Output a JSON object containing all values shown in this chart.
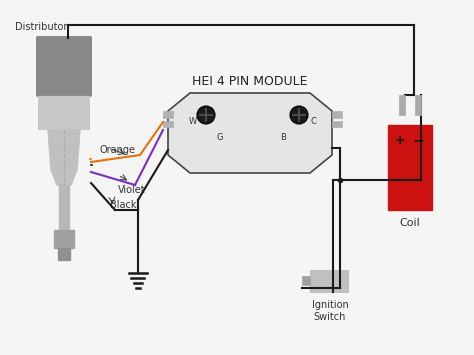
{
  "title": "HEI 4 PIN MODULE",
  "bg_color": "#f5f5f5",
  "wire_color_black": "#1a1a1a",
  "wire_color_orange": "#E8720C",
  "wire_color_violet": "#7B2FBE",
  "distributor_label": "Distributor",
  "coil_label": "Coil",
  "ignition_label": "Ignition\nSwitch",
  "module_color": "#e8e8e8",
  "distributor_cap_color": "#909090",
  "distributor_cap_dark": "#707070",
  "distributor_lower_color": "#c0c0c0",
  "distributor_shaft_color": "#b0b0b0",
  "coil_color": "#cc1111",
  "ignition_switch_color": "#c0c0c0",
  "terminal_color": "#aaaaaa"
}
